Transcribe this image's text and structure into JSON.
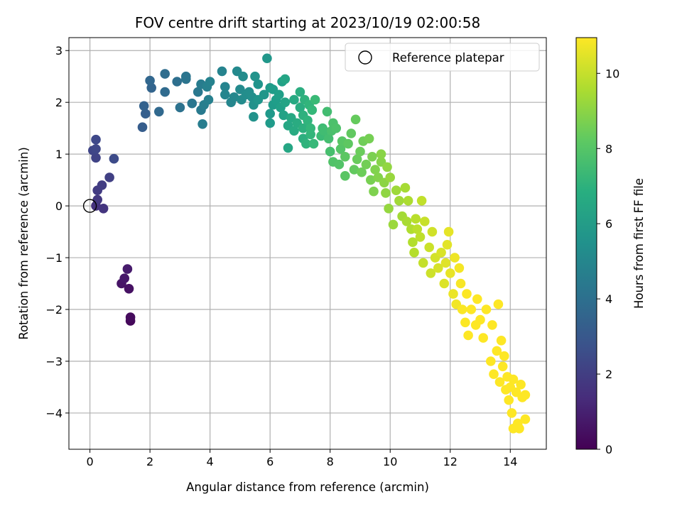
{
  "chart_data": {
    "type": "scatter",
    "title": "FOV centre drift starting at 2023/10/19 02:00:58",
    "xlabel": "Angular distance from reference (arcmin)",
    "ylabel": "Rotation from reference (arcmin)",
    "xlim": [
      -0.7,
      15.2
    ],
    "ylim": [
      -4.7,
      3.25
    ],
    "xticks": [
      0,
      2,
      4,
      6,
      8,
      10,
      12,
      14
    ],
    "yticks": [
      -4,
      -3,
      -2,
      -1,
      0,
      1,
      2,
      3
    ],
    "grid": true,
    "legend": {
      "placement": "upper right",
      "entries": [
        "Reference platepar"
      ]
    },
    "reference_point": {
      "x": 0,
      "y": 0,
      "label": "Reference platepar"
    },
    "colorbar": {
      "label": "Hours from first FF file",
      "range": [
        0,
        10.95
      ],
      "ticks": [
        0,
        2,
        4,
        6,
        8,
        10
      ],
      "colormap": "viridis"
    },
    "series": [
      {
        "points": [
          [
            1.35,
            -2.22,
            0.2
          ],
          [
            1.35,
            -2.15,
            0.3
          ],
          [
            1.3,
            -1.6,
            0.5
          ],
          [
            1.05,
            -1.5,
            0.6
          ],
          [
            1.15,
            -1.4,
            0.7
          ],
          [
            1.25,
            -1.22,
            0.8
          ],
          [
            0.2,
            0.0,
            1.6
          ],
          [
            0.45,
            -0.05,
            1.7
          ],
          [
            0.25,
            0.12,
            1.8
          ],
          [
            0.25,
            0.3,
            1.9
          ],
          [
            0.4,
            0.4,
            2.0
          ],
          [
            0.65,
            0.55,
            2.1
          ],
          [
            0.2,
            0.93,
            2.2
          ],
          [
            0.1,
            1.07,
            2.3
          ],
          [
            0.2,
            1.1,
            2.35
          ],
          [
            0.2,
            1.28,
            2.4
          ],
          [
            0.8,
            0.91,
            2.5
          ],
          [
            1.75,
            1.52,
            3.2
          ],
          [
            1.85,
            1.78,
            3.3
          ],
          [
            1.8,
            1.93,
            3.4
          ],
          [
            2.05,
            2.28,
            3.5
          ],
          [
            2.0,
            2.42,
            3.6
          ],
          [
            2.3,
            1.82,
            3.7
          ],
          [
            2.5,
            2.2,
            3.8
          ],
          [
            2.5,
            2.55,
            3.9
          ],
          [
            2.9,
            2.4,
            4.0
          ],
          [
            3.0,
            1.9,
            4.1
          ],
          [
            3.2,
            2.45,
            4.2
          ],
          [
            3.2,
            2.5,
            4.25
          ],
          [
            3.4,
            1.98,
            4.3
          ],
          [
            3.6,
            2.2,
            4.4
          ],
          [
            3.7,
            1.85,
            4.5
          ],
          [
            3.7,
            2.35,
            4.6
          ],
          [
            3.75,
            1.58,
            4.65
          ],
          [
            3.8,
            1.95,
            4.7
          ],
          [
            3.95,
            2.05,
            4.75
          ],
          [
            3.9,
            2.3,
            4.8
          ],
          [
            4.0,
            2.4,
            4.85
          ],
          [
            4.4,
            2.6,
            4.9
          ],
          [
            4.5,
            2.3,
            4.95
          ],
          [
            4.5,
            2.15,
            5.0
          ],
          [
            4.7,
            2.0,
            5.05
          ],
          [
            4.8,
            2.1,
            5.1
          ],
          [
            4.9,
            2.6,
            5.15
          ],
          [
            5.0,
            2.25,
            5.2
          ],
          [
            5.05,
            2.05,
            5.25
          ],
          [
            5.1,
            2.5,
            5.3
          ],
          [
            5.2,
            2.15,
            5.35
          ],
          [
            5.3,
            2.2,
            5.4
          ],
          [
            5.4,
            2.1,
            5.45
          ],
          [
            5.45,
            1.95,
            5.5
          ],
          [
            5.45,
            1.72,
            5.55
          ],
          [
            5.5,
            2.5,
            5.6
          ],
          [
            5.6,
            2.35,
            5.65
          ],
          [
            5.6,
            2.05,
            5.7
          ],
          [
            5.8,
            2.15,
            5.75
          ],
          [
            5.9,
            2.85,
            5.8
          ],
          [
            6.0,
            1.78,
            5.85
          ],
          [
            6.0,
            2.28,
            5.9
          ],
          [
            6.0,
            1.6,
            5.95
          ],
          [
            6.1,
            1.95,
            6.0
          ],
          [
            6.1,
            2.25,
            6.05
          ],
          [
            6.2,
            2.05,
            6.1
          ],
          [
            6.3,
            2.15,
            6.15
          ],
          [
            6.35,
            1.9,
            6.2
          ],
          [
            6.4,
            2.4,
            6.25
          ],
          [
            6.45,
            1.75,
            6.3
          ],
          [
            6.5,
            2.0,
            6.35
          ],
          [
            6.5,
            2.45,
            6.4
          ],
          [
            6.6,
            1.12,
            6.45
          ],
          [
            6.6,
            1.55,
            6.5
          ],
          [
            6.7,
            1.7,
            6.55
          ],
          [
            6.8,
            2.05,
            6.6
          ],
          [
            6.8,
            1.45,
            6.65
          ],
          [
            6.9,
            1.6,
            6.7
          ],
          [
            7.0,
            1.9,
            6.75
          ],
          [
            7.0,
            2.2,
            6.8
          ],
          [
            7.1,
            1.3,
            6.85
          ],
          [
            7.1,
            1.5,
            6.9
          ],
          [
            7.1,
            1.75,
            6.95
          ],
          [
            7.15,
            2.05,
            7.0
          ],
          [
            7.2,
            1.2,
            7.05
          ],
          [
            7.25,
            1.65,
            7.1
          ],
          [
            7.3,
            1.95,
            7.15
          ],
          [
            7.35,
            1.38,
            7.2
          ],
          [
            7.35,
            1.5,
            7.25
          ],
          [
            7.4,
            1.85,
            7.3
          ],
          [
            7.45,
            1.2,
            7.35
          ],
          [
            7.5,
            2.05,
            7.4
          ],
          [
            7.7,
            1.35,
            7.45
          ],
          [
            7.75,
            1.5,
            7.5
          ],
          [
            7.8,
            1.45,
            7.55
          ],
          [
            7.9,
            1.82,
            7.6
          ],
          [
            7.95,
            1.3,
            7.65
          ],
          [
            8.0,
            1.05,
            7.7
          ],
          [
            8.05,
            1.45,
            7.75
          ],
          [
            8.1,
            1.6,
            7.8
          ],
          [
            8.2,
            1.5,
            7.85
          ],
          [
            8.1,
            0.85,
            7.9
          ],
          [
            8.3,
            0.8,
            7.95
          ],
          [
            8.35,
            1.1,
            8.0
          ],
          [
            8.4,
            1.25,
            8.05
          ],
          [
            8.5,
            0.58,
            8.1
          ],
          [
            8.5,
            0.95,
            8.15
          ],
          [
            8.6,
            1.2,
            8.2
          ],
          [
            8.7,
            1.4,
            8.25
          ],
          [
            8.8,
            0.7,
            8.3
          ],
          [
            8.85,
            1.67,
            8.35
          ],
          [
            8.9,
            0.9,
            8.4
          ],
          [
            9.0,
            1.05,
            8.45
          ],
          [
            9.05,
            0.65,
            8.5
          ],
          [
            9.1,
            1.25,
            8.55
          ],
          [
            9.2,
            0.8,
            8.6
          ],
          [
            9.3,
            1.3,
            8.65
          ],
          [
            9.35,
            0.5,
            8.7
          ],
          [
            9.4,
            0.95,
            8.75
          ],
          [
            9.45,
            0.28,
            8.8
          ],
          [
            9.5,
            0.7,
            8.85
          ],
          [
            9.6,
            0.55,
            8.9
          ],
          [
            9.7,
            0.85,
            8.95
          ],
          [
            9.7,
            1.0,
            9.0
          ],
          [
            9.8,
            0.45,
            9.05
          ],
          [
            9.85,
            0.25,
            9.1
          ],
          [
            9.9,
            0.75,
            9.15
          ],
          [
            9.95,
            -0.05,
            9.2
          ],
          [
            10.0,
            0.55,
            9.25
          ],
          [
            10.1,
            -0.36,
            9.3
          ],
          [
            10.2,
            0.3,
            9.35
          ],
          [
            10.3,
            0.1,
            9.4
          ],
          [
            10.4,
            -0.2,
            9.45
          ],
          [
            10.5,
            0.35,
            9.5
          ],
          [
            10.55,
            -0.3,
            9.55
          ],
          [
            10.6,
            0.1,
            9.6
          ],
          [
            10.7,
            -0.45,
            9.65
          ],
          [
            10.75,
            -0.7,
            9.7
          ],
          [
            10.8,
            -0.9,
            9.75
          ],
          [
            10.85,
            -0.25,
            9.8
          ],
          [
            10.9,
            -0.45,
            9.85
          ],
          [
            11.0,
            -0.6,
            9.9
          ],
          [
            11.05,
            0.1,
            9.95
          ],
          [
            11.1,
            -1.1,
            10.0
          ],
          [
            11.15,
            -0.3,
            10.05
          ],
          [
            11.3,
            -0.8,
            10.1
          ],
          [
            11.35,
            -1.3,
            10.15
          ],
          [
            11.4,
            -0.5,
            10.2
          ],
          [
            11.5,
            -1.0,
            10.25
          ],
          [
            11.6,
            -1.2,
            10.3
          ],
          [
            11.7,
            -0.9,
            10.35
          ],
          [
            11.8,
            -1.5,
            10.4
          ],
          [
            11.85,
            -1.1,
            10.45
          ],
          [
            11.9,
            -0.75,
            10.5
          ],
          [
            11.95,
            -0.5,
            10.55
          ],
          [
            12.0,
            -1.3,
            10.6
          ],
          [
            12.1,
            -1.7,
            10.65
          ],
          [
            12.15,
            -1.0,
            10.7
          ],
          [
            12.2,
            -1.9,
            10.75
          ],
          [
            12.3,
            -1.2,
            10.8
          ],
          [
            12.35,
            -1.5,
            10.85
          ],
          [
            12.4,
            -2.0,
            10.9
          ],
          [
            12.5,
            -2.25,
            10.92
          ],
          [
            12.55,
            -1.7,
            10.94
          ],
          [
            12.6,
            -2.5,
            10.95
          ],
          [
            12.7,
            -2.0,
            10.95
          ],
          [
            12.85,
            -2.3,
            10.95
          ],
          [
            12.9,
            -1.8,
            10.95
          ],
          [
            13.0,
            -2.2,
            10.95
          ],
          [
            13.1,
            -2.55,
            10.95
          ],
          [
            13.2,
            -2.0,
            10.95
          ],
          [
            13.35,
            -3.0,
            10.95
          ],
          [
            13.4,
            -2.3,
            10.95
          ],
          [
            13.45,
            -3.25,
            10.95
          ],
          [
            13.55,
            -2.8,
            10.95
          ],
          [
            13.6,
            -1.9,
            10.95
          ],
          [
            13.65,
            -3.4,
            10.95
          ],
          [
            13.7,
            -2.6,
            10.95
          ],
          [
            13.75,
            -3.1,
            10.95
          ],
          [
            13.8,
            -2.9,
            10.95
          ],
          [
            13.85,
            -3.55,
            10.95
          ],
          [
            13.9,
            -3.3,
            10.95
          ],
          [
            13.95,
            -3.75,
            10.95
          ],
          [
            14.0,
            -3.5,
            10.95
          ],
          [
            14.05,
            -4.0,
            10.95
          ],
          [
            14.1,
            -3.35,
            10.95
          ],
          [
            14.1,
            -4.3,
            10.95
          ],
          [
            14.2,
            -3.6,
            10.95
          ],
          [
            14.25,
            -4.2,
            10.95
          ],
          [
            14.3,
            -4.3,
            10.95
          ],
          [
            14.35,
            -3.45,
            10.95
          ],
          [
            14.4,
            -3.7,
            10.95
          ],
          [
            14.5,
            -4.12,
            10.95
          ],
          [
            14.5,
            -3.65,
            10.95
          ]
        ]
      }
    ]
  }
}
